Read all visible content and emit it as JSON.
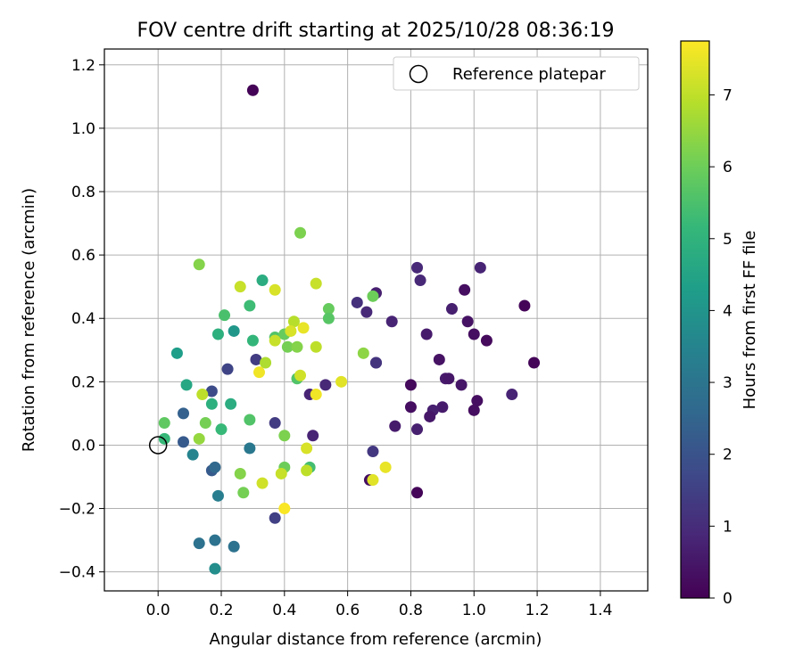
{
  "chart_data": {
    "type": "scatter",
    "title": "FOV centre drift starting at 2025/10/28 08:36:19",
    "xlabel": "Angular distance from reference (arcmin)",
    "ylabel": "Rotation from reference (arcmin)",
    "xlim": [
      -0.17,
      1.55
    ],
    "ylim": [
      -0.46,
      1.25
    ],
    "xticks": [
      0.0,
      0.2,
      0.4,
      0.6,
      0.8,
      1.0,
      1.2,
      1.4
    ],
    "xtick_labels": [
      "0.0",
      "0.2",
      "0.4",
      "0.6",
      "0.8",
      "1.0",
      "1.2",
      "1.4"
    ],
    "yticks": [
      -0.4,
      -0.2,
      0.0,
      0.2,
      0.4,
      0.6,
      0.8,
      1.0,
      1.2
    ],
    "ytick_labels": [
      "−0.4",
      "−0.2",
      "0.0",
      "0.2",
      "0.4",
      "0.6",
      "0.8",
      "1.0",
      "1.2"
    ],
    "grid": true,
    "legend": {
      "position": "top-right",
      "label": "Reference platepar"
    },
    "reference_point": {
      "x": 0.0,
      "y": 0.0
    },
    "colorbar": {
      "label": "Hours from first FF file",
      "colormap": "viridis",
      "range": [
        0,
        7.75
      ],
      "ticks": [
        0,
        1,
        2,
        3,
        4,
        5,
        6,
        7
      ],
      "tick_labels": [
        "0",
        "1",
        "2",
        "3",
        "4",
        "5",
        "6",
        "7"
      ]
    },
    "colors": {
      "viridis": [
        "#440154",
        "#482777",
        "#3e4989",
        "#31688e",
        "#26828e",
        "#1f9e89",
        "#35b779",
        "#6ece58",
        "#b5de2b",
        "#fde725"
      ]
    },
    "points": [
      {
        "x": 0.3,
        "y": 1.12,
        "h": 0.05
      },
      {
        "x": 0.82,
        "y": 0.56,
        "h": 0.9
      },
      {
        "x": 0.83,
        "y": 0.52,
        "h": 0.9
      },
      {
        "x": 1.02,
        "y": 0.56,
        "h": 0.8
      },
      {
        "x": 0.97,
        "y": 0.49,
        "h": 0.3
      },
      {
        "x": 0.98,
        "y": 0.39,
        "h": 0.4
      },
      {
        "x": 1.0,
        "y": 0.35,
        "h": 0.3
      },
      {
        "x": 1.04,
        "y": 0.33,
        "h": 0.2
      },
      {
        "x": 1.16,
        "y": 0.44,
        "h": 0.1
      },
      {
        "x": 1.19,
        "y": 0.26,
        "h": 0.1
      },
      {
        "x": 1.12,
        "y": 0.16,
        "h": 0.8
      },
      {
        "x": 0.93,
        "y": 0.43,
        "h": 0.7
      },
      {
        "x": 0.85,
        "y": 0.35,
        "h": 0.6
      },
      {
        "x": 0.89,
        "y": 0.27,
        "h": 0.4
      },
      {
        "x": 0.91,
        "y": 0.21,
        "h": 0.6
      },
      {
        "x": 0.92,
        "y": 0.21,
        "h": 0.5
      },
      {
        "x": 0.96,
        "y": 0.19,
        "h": 0.5
      },
      {
        "x": 1.01,
        "y": 0.14,
        "h": 0.3
      },
      {
        "x": 1.0,
        "y": 0.11,
        "h": 0.3
      },
      {
        "x": 0.9,
        "y": 0.12,
        "h": 0.6
      },
      {
        "x": 0.87,
        "y": 0.11,
        "h": 0.7
      },
      {
        "x": 0.86,
        "y": 0.09,
        "h": 0.5
      },
      {
        "x": 0.8,
        "y": 0.19,
        "h": 0.2
      },
      {
        "x": 0.8,
        "y": 0.12,
        "h": 0.3
      },
      {
        "x": 0.82,
        "y": 0.05,
        "h": 0.7
      },
      {
        "x": 0.75,
        "y": 0.06,
        "h": 0.6
      },
      {
        "x": 0.82,
        "y": -0.15,
        "h": 0.1
      },
      {
        "x": 0.74,
        "y": 0.39,
        "h": 0.8
      },
      {
        "x": 0.69,
        "y": 0.48,
        "h": 0.7
      },
      {
        "x": 0.66,
        "y": 0.42,
        "h": 0.9
      },
      {
        "x": 0.63,
        "y": 0.45,
        "h": 1.1
      },
      {
        "x": 0.69,
        "y": 0.26,
        "h": 0.9
      },
      {
        "x": 0.69,
        "y": 0.26,
        "h": 1.2
      },
      {
        "x": 0.68,
        "y": -0.02,
        "h": 1.3
      },
      {
        "x": 0.67,
        "y": -0.11,
        "h": 0.3
      },
      {
        "x": 0.53,
        "y": 0.19,
        "h": 0.9
      },
      {
        "x": 0.48,
        "y": 0.16,
        "h": 0.8
      },
      {
        "x": 0.49,
        "y": 0.03,
        "h": 0.8
      },
      {
        "x": 0.37,
        "y": 0.07,
        "h": 1.4
      },
      {
        "x": 0.37,
        "y": -0.23,
        "h": 1.5
      },
      {
        "x": 0.31,
        "y": 0.27,
        "h": 1.4
      },
      {
        "x": 0.22,
        "y": 0.24,
        "h": 1.6
      },
      {
        "x": 0.17,
        "y": 0.17,
        "h": 1.8
      },
      {
        "x": 0.08,
        "y": 0.1,
        "h": 2.4
      },
      {
        "x": 0.08,
        "y": 0.01,
        "h": 2.2
      },
      {
        "x": 0.17,
        "y": -0.08,
        "h": 2.2
      },
      {
        "x": 0.18,
        "y": -0.07,
        "h": 2.6
      },
      {
        "x": 0.13,
        "y": -0.31,
        "h": 2.9
      },
      {
        "x": 0.18,
        "y": -0.3,
        "h": 2.9
      },
      {
        "x": 0.24,
        "y": -0.32,
        "h": 2.9
      },
      {
        "x": 0.18,
        "y": -0.39,
        "h": 3.8
      },
      {
        "x": 0.19,
        "y": -0.16,
        "h": 3.3
      },
      {
        "x": 0.29,
        "y": -0.01,
        "h": 3.1
      },
      {
        "x": 0.11,
        "y": -0.03,
        "h": 3.5
      },
      {
        "x": 0.02,
        "y": 0.02,
        "h": 5.2
      },
      {
        "x": 0.02,
        "y": 0.07,
        "h": 5.8
      },
      {
        "x": 0.06,
        "y": 0.29,
        "h": 4.3
      },
      {
        "x": 0.09,
        "y": 0.19,
        "h": 4.6
      },
      {
        "x": 0.17,
        "y": 0.13,
        "h": 4.9
      },
      {
        "x": 0.23,
        "y": 0.13,
        "h": 4.8
      },
      {
        "x": 0.2,
        "y": 0.05,
        "h": 5.2
      },
      {
        "x": 0.19,
        "y": 0.35,
        "h": 4.9
      },
      {
        "x": 0.24,
        "y": 0.36,
        "h": 4.1
      },
      {
        "x": 0.21,
        "y": 0.41,
        "h": 5.5
      },
      {
        "x": 0.29,
        "y": 0.44,
        "h": 5.3
      },
      {
        "x": 0.33,
        "y": 0.52,
        "h": 4.8
      },
      {
        "x": 0.3,
        "y": 0.33,
        "h": 5.1
      },
      {
        "x": 0.37,
        "y": 0.34,
        "h": 5.6
      },
      {
        "x": 0.4,
        "y": 0.35,
        "h": 5.9
      },
      {
        "x": 0.41,
        "y": 0.31,
        "h": 6.1
      },
      {
        "x": 0.44,
        "y": 0.31,
        "h": 6.3
      },
      {
        "x": 0.44,
        "y": 0.21,
        "h": 5.6
      },
      {
        "x": 0.54,
        "y": 0.43,
        "h": 5.9
      },
      {
        "x": 0.54,
        "y": 0.4,
        "h": 5.7
      },
      {
        "x": 0.45,
        "y": 0.67,
        "h": 6.2
      },
      {
        "x": 0.13,
        "y": 0.57,
        "h": 6.3
      },
      {
        "x": 0.68,
        "y": 0.47,
        "h": 6.0
      },
      {
        "x": 0.65,
        "y": 0.29,
        "h": 6.4
      },
      {
        "x": 0.29,
        "y": 0.08,
        "h": 5.6
      },
      {
        "x": 0.15,
        "y": 0.07,
        "h": 6.1
      },
      {
        "x": 0.13,
        "y": 0.02,
        "h": 6.5
      },
      {
        "x": 0.26,
        "y": -0.09,
        "h": 6.3
      },
      {
        "x": 0.27,
        "y": -0.15,
        "h": 6.1
      },
      {
        "x": 0.4,
        "y": 0.03,
        "h": 6.2
      },
      {
        "x": 0.4,
        "y": -0.07,
        "h": 6.0
      },
      {
        "x": 0.48,
        "y": -0.07,
        "h": 5.4
      },
      {
        "x": 0.34,
        "y": 0.26,
        "h": 6.8
      },
      {
        "x": 0.14,
        "y": 0.16,
        "h": 7.0
      },
      {
        "x": 0.26,
        "y": 0.5,
        "h": 7.1
      },
      {
        "x": 0.37,
        "y": 0.49,
        "h": 7.3
      },
      {
        "x": 0.5,
        "y": 0.51,
        "h": 7.1
      },
      {
        "x": 0.43,
        "y": 0.39,
        "h": 6.9
      },
      {
        "x": 0.42,
        "y": 0.36,
        "h": 7.3
      },
      {
        "x": 0.46,
        "y": 0.37,
        "h": 7.5
      },
      {
        "x": 0.37,
        "y": 0.33,
        "h": 7.1
      },
      {
        "x": 0.5,
        "y": 0.31,
        "h": 7.0
      },
      {
        "x": 0.32,
        "y": 0.23,
        "h": 7.6
      },
      {
        "x": 0.45,
        "y": 0.22,
        "h": 7.2
      },
      {
        "x": 0.5,
        "y": 0.16,
        "h": 7.6
      },
      {
        "x": 0.58,
        "y": 0.2,
        "h": 7.4
      },
      {
        "x": 0.47,
        "y": -0.01,
        "h": 7.3
      },
      {
        "x": 0.47,
        "y": -0.08,
        "h": 7.0
      },
      {
        "x": 0.39,
        "y": -0.09,
        "h": 7.1
      },
      {
        "x": 0.33,
        "y": -0.12,
        "h": 7.2
      },
      {
        "x": 0.4,
        "y": -0.2,
        "h": 7.7
      },
      {
        "x": 0.68,
        "y": -0.11,
        "h": 7.4
      },
      {
        "x": 0.72,
        "y": -0.07,
        "h": 7.5
      }
    ]
  }
}
